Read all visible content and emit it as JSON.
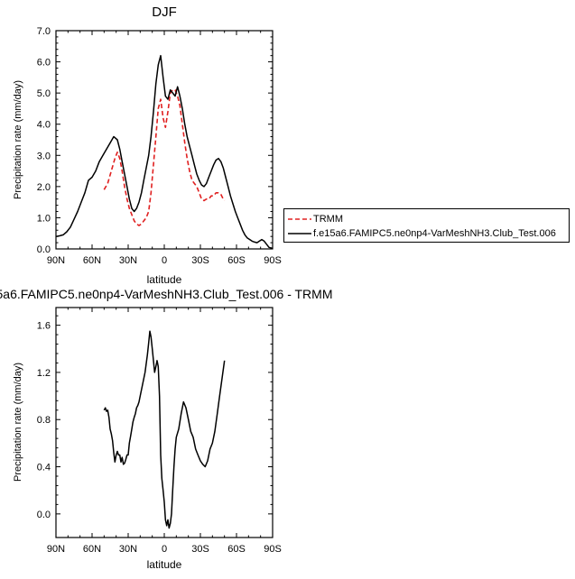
{
  "chart_data": [
    {
      "type": "line",
      "title": "DJF",
      "xlabel": "latitude",
      "ylabel": "Precipitation rate (mm/day)",
      "xlim": [
        90,
        -90
      ],
      "ylim": [
        0,
        7
      ],
      "xticks": [
        90,
        60,
        30,
        0,
        -30,
        -60,
        -90
      ],
      "xtick_labels": [
        "90N",
        "60N",
        "30N",
        "0",
        "30S",
        "60S",
        "90S"
      ],
      "yticks": [
        0,
        1,
        2,
        3,
        4,
        5,
        6,
        7
      ],
      "ytick_labels": [
        "0.0",
        "1.0",
        "2.0",
        "3.0",
        "4.0",
        "5.0",
        "6.0",
        "7.0"
      ],
      "legend_position": "right",
      "series": [
        {
          "name": "TRMM",
          "color": "#e02020",
          "dash": true,
          "x": [
            50,
            47,
            44,
            41,
            39,
            37,
            35,
            33,
            31,
            29,
            27,
            25,
            23,
            21,
            19,
            17,
            15,
            13,
            11,
            9,
            7,
            5,
            3,
            1,
            -1,
            -3,
            -5,
            -7,
            -9,
            -11,
            -13,
            -15,
            -17,
            -19,
            -21,
            -23,
            -25,
            -27,
            -29,
            -31,
            -33,
            -35,
            -37,
            -39,
            -41,
            -43,
            -45,
            -47,
            -49,
            -50
          ],
          "y": [
            1.9,
            2.1,
            2.5,
            2.9,
            3.1,
            2.9,
            2.5,
            2.0,
            1.6,
            1.3,
            1.1,
            0.9,
            0.8,
            0.75,
            0.8,
            0.9,
            1.0,
            1.2,
            1.8,
            2.7,
            3.6,
            4.5,
            4.8,
            4.2,
            3.9,
            4.4,
            5.0,
            5.1,
            5.1,
            4.9,
            4.6,
            4.0,
            3.4,
            2.9,
            2.5,
            2.2,
            2.1,
            2.0,
            1.8,
            1.6,
            1.55,
            1.6,
            1.6,
            1.7,
            1.7,
            1.8,
            1.8,
            1.75,
            1.6,
            1.55
          ]
        },
        {
          "name": "f.e15a6.FAMIPC5.ne0np4-VarMeshNH3.Club_Test.006",
          "color": "#000000",
          "dash": false,
          "x": [
            90,
            87,
            84,
            81,
            78,
            75,
            72,
            69,
            66,
            63,
            60,
            57,
            54,
            51,
            48,
            45,
            42,
            39,
            37,
            35,
            33,
            31,
            29,
            27,
            25,
            23,
            21,
            19,
            17,
            15,
            13,
            11,
            9,
            7,
            5,
            3,
            1,
            -1,
            -3,
            -5,
            -7,
            -9,
            -11,
            -13,
            -15,
            -17,
            -19,
            -21,
            -23,
            -25,
            -27,
            -29,
            -31,
            -33,
            -35,
            -37,
            -39,
            -41,
            -43,
            -45,
            -47,
            -49,
            -51,
            -53,
            -55,
            -57,
            -59,
            -61,
            -63,
            -65,
            -67,
            -69,
            -71,
            -73,
            -75,
            -77,
            -79,
            -81,
            -83,
            -85,
            -87,
            -90
          ],
          "y": [
            0.4,
            0.42,
            0.45,
            0.55,
            0.7,
            0.95,
            1.2,
            1.5,
            1.8,
            2.2,
            2.3,
            2.5,
            2.8,
            3.0,
            3.2,
            3.4,
            3.6,
            3.5,
            3.2,
            2.8,
            2.4,
            2.0,
            1.6,
            1.3,
            1.2,
            1.3,
            1.5,
            1.8,
            2.2,
            2.6,
            3.0,
            3.6,
            4.4,
            5.3,
            5.9,
            6.2,
            5.5,
            4.9,
            4.8,
            5.1,
            5.0,
            4.9,
            5.2,
            4.9,
            4.5,
            4.0,
            3.6,
            3.3,
            3.0,
            2.7,
            2.4,
            2.2,
            2.05,
            2.0,
            2.1,
            2.3,
            2.5,
            2.7,
            2.85,
            2.9,
            2.8,
            2.6,
            2.3,
            2.0,
            1.7,
            1.45,
            1.2,
            1.0,
            0.8,
            0.6,
            0.45,
            0.35,
            0.3,
            0.25,
            0.22,
            0.2,
            0.25,
            0.3,
            0.25,
            0.15,
            0.05,
            0.02
          ]
        }
      ]
    },
    {
      "type": "line",
      "title": "5a6.FAMIPC5.ne0np4-VarMeshNH3.Club_Test.006 - TRMM",
      "xlabel": "latitude",
      "ylabel": "Precipitation rate (mm/day)",
      "xlim": [
        90,
        -90
      ],
      "ylim": [
        -0.2,
        1.75
      ],
      "xticks": [
        90,
        60,
        30,
        0,
        -30,
        -60,
        -90
      ],
      "xtick_labels": [
        "90N",
        "60N",
        "30N",
        "0",
        "30S",
        "60S",
        "90S"
      ],
      "yticks": [
        0.0,
        0.4,
        0.8,
        1.2,
        1.6
      ],
      "ytick_labels": [
        "0.0",
        "0.4",
        "0.8",
        "1.2",
        "1.6"
      ],
      "series": [
        {
          "color": "#000000",
          "dash": false,
          "x": [
            50,
            49,
            48,
            47,
            46,
            45,
            44,
            43,
            42,
            41,
            40,
            39,
            38,
            37,
            36,
            35,
            34,
            33,
            32,
            31,
            30,
            29,
            28,
            27,
            26,
            25,
            24,
            23,
            22,
            21,
            20,
            18,
            16,
            14,
            13,
            12,
            11,
            10,
            9,
            8,
            7,
            6,
            5,
            4,
            3,
            2,
            1,
            0,
            -1,
            -2,
            -3,
            -4,
            -5,
            -6,
            -7,
            -8,
            -9,
            -10,
            -12,
            -14,
            -16,
            -18,
            -20,
            -22,
            -24,
            -26,
            -28,
            -30,
            -32,
            -34,
            -36,
            -38,
            -40,
            -42,
            -44,
            -46,
            -48,
            -50
          ],
          "y": [
            0.88,
            0.9,
            0.87,
            0.88,
            0.82,
            0.72,
            0.68,
            0.62,
            0.52,
            0.44,
            0.5,
            0.53,
            0.5,
            0.5,
            0.44,
            0.48,
            0.42,
            0.43,
            0.46,
            0.5,
            0.5,
            0.6,
            0.66,
            0.72,
            0.78,
            0.82,
            0.85,
            0.9,
            0.92,
            0.95,
            1.0,
            1.1,
            1.2,
            1.35,
            1.45,
            1.55,
            1.5,
            1.4,
            1.3,
            1.2,
            1.25,
            1.3,
            1.25,
            1.0,
            0.5,
            0.3,
            0.2,
            0.1,
            -0.05,
            -0.1,
            -0.05,
            -0.12,
            -0.08,
            0.0,
            0.2,
            0.4,
            0.55,
            0.65,
            0.72,
            0.85,
            0.95,
            0.9,
            0.8,
            0.7,
            0.65,
            0.55,
            0.5,
            0.45,
            0.42,
            0.4,
            0.45,
            0.55,
            0.6,
            0.7,
            0.85,
            1.0,
            1.15,
            1.3
          ]
        }
      ]
    }
  ]
}
